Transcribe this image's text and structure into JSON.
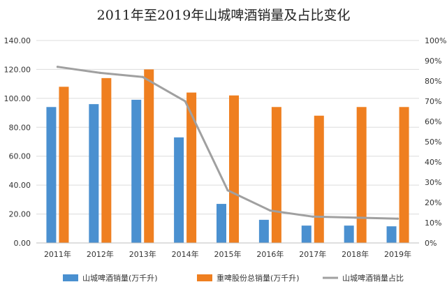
{
  "chart_data": {
    "type": "bar",
    "title": "2011年至2019年山城啤酒销量及占比变化",
    "categories": [
      "2011年",
      "2012年",
      "2013年",
      "2014年",
      "2015年",
      "2016年",
      "2017年",
      "2018年",
      "2019年"
    ],
    "series": [
      {
        "name": "山城啤酒销量(万千升)",
        "type": "bar",
        "axis": "left",
        "color": "#4a90d0",
        "values": [
          94,
          96,
          99,
          73,
          27,
          16,
          12,
          12,
          11.5
        ]
      },
      {
        "name": "重啤股份总销量(万千升)",
        "type": "bar",
        "axis": "left",
        "color": "#ef7f20",
        "values": [
          108,
          114,
          120,
          104,
          102,
          94,
          88,
          94,
          94
        ]
      },
      {
        "name": "山城啤酒销量占比",
        "type": "line",
        "axis": "right",
        "color": "#a0a0a0",
        "values": [
          0.87,
          0.84,
          0.82,
          0.7,
          0.26,
          0.16,
          0.13,
          0.125,
          0.12
        ]
      }
    ],
    "y_left": {
      "min": 0,
      "max": 140,
      "ticks": [
        "0.00",
        "20.00",
        "40.00",
        "60.00",
        "80.00",
        "100.00",
        "120.00",
        "140.00"
      ]
    },
    "y_right": {
      "min": 0,
      "max": 1,
      "ticks": [
        "0%",
        "10%",
        "20%",
        "30%",
        "40%",
        "50%",
        "60%",
        "70%",
        "80%",
        "90%",
        "100%"
      ]
    },
    "grid": true,
    "legend_position": "bottom"
  }
}
